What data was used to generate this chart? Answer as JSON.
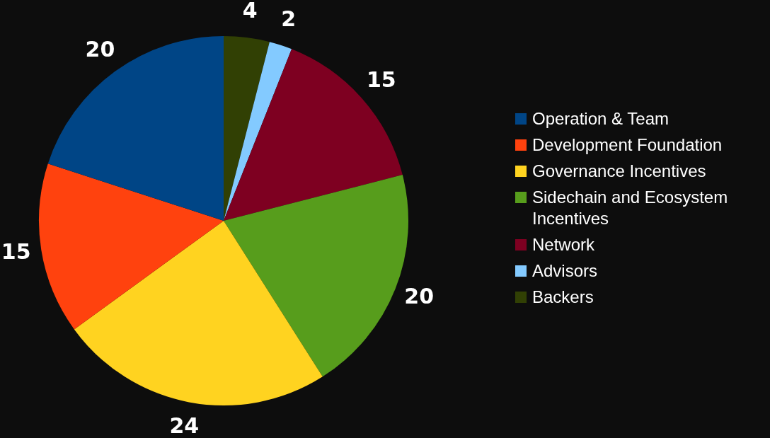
{
  "chart_data": {
    "type": "pie",
    "categories": [
      "Operation & Team",
      "Development Foundation",
      "Governance Incentives",
      "Sidechain and Ecosystem Incentives",
      "Network",
      "Advisors",
      "Backers"
    ],
    "values": [
      20,
      15,
      24,
      20,
      15,
      2,
      4
    ],
    "colors": [
      "#004586",
      "#ff420e",
      "#ffd320",
      "#579d1c",
      "#7e0021",
      "#83caff",
      "#314004"
    ],
    "data_labels": true,
    "legend": "right"
  }
}
